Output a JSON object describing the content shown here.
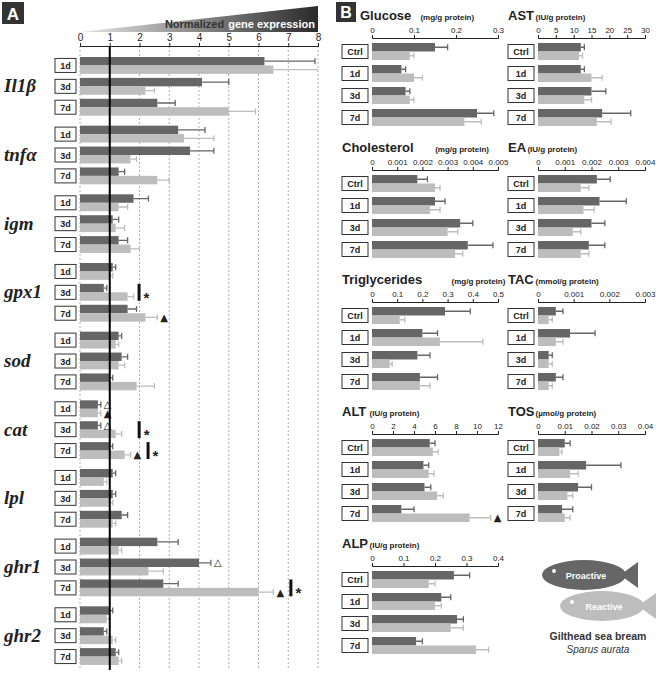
{
  "chart_data": [
    {
      "type": "bar",
      "orientation": "horizontal",
      "panel": "A",
      "title": "Normalized gene expression",
      "xlim": [
        0,
        8
      ],
      "xticks": [
        0,
        1,
        2,
        3,
        4,
        5,
        6,
        7,
        8
      ],
      "reference_line": 1,
      "groups": [
        "Il1β",
        "tnfα",
        "igm",
        "gpx1",
        "sod",
        "cat",
        "lpl",
        "ghr1",
        "ghr2"
      ],
      "categories": [
        "1d",
        "3d",
        "7d",
        "1d",
        "3d",
        "7d",
        "1d",
        "3d",
        "7d",
        "1d",
        "3d",
        "7d",
        "1d",
        "3d",
        "7d",
        "1d",
        "3d",
        "7d",
        "1d",
        "3d",
        "7d",
        "1d",
        "3d",
        "7d",
        "1d",
        "3d",
        "7d"
      ],
      "series": [
        {
          "name": "Proactive",
          "color": "#666666",
          "values": [
            6.2,
            4.1,
            2.6,
            3.3,
            3.7,
            1.3,
            1.8,
            1.1,
            1.3,
            1.1,
            0.8,
            1.6,
            1.3,
            1.4,
            1.0,
            0.6,
            0.6,
            1.0,
            1.1,
            1.1,
            1.4,
            2.6,
            4.0,
            2.8,
            1.0,
            0.8,
            1.2
          ],
          "errors": [
            1.7,
            0.9,
            0.6,
            0.9,
            0.8,
            0.2,
            0.5,
            0.2,
            0.3,
            0.1,
            0.1,
            0.3,
            0.1,
            0.2,
            0.1,
            0.1,
            0.1,
            0.1,
            0.1,
            0.1,
            0.2,
            0.7,
            0.4,
            0.5,
            0.1,
            0.1,
            0.1
          ]
        },
        {
          "name": "Reactive",
          "color": "#bdbdbd",
          "values": [
            6.5,
            2.2,
            5.0,
            3.5,
            1.7,
            2.6,
            1.3,
            1.2,
            1.7,
            1.0,
            1.6,
            2.2,
            1.2,
            1.3,
            1.9,
            0.6,
            1.2,
            1.5,
            0.8,
            1.0,
            1.1,
            1.3,
            2.3,
            6.0,
            0.9,
            1.1,
            1.3
          ],
          "errors": [
            1.9,
            0.3,
            0.9,
            1.0,
            0.2,
            0.4,
            0.3,
            0.3,
            0.3,
            0.1,
            0.2,
            0.4,
            0.1,
            0.2,
            0.6,
            0.1,
            0.2,
            0.2,
            0.1,
            0.1,
            0.1,
            0.1,
            0.5,
            0.5,
            0.1,
            0.1,
            0.1
          ]
        }
      ],
      "annotations": [
        {
          "index": 10,
          "text": "*"
        },
        {
          "index": 11,
          "series": 1,
          "text": "▲"
        },
        {
          "index": 15,
          "series": 0,
          "text": "△"
        },
        {
          "index": 15,
          "series": 1,
          "text": "▲"
        },
        {
          "index": 16,
          "series": 0,
          "text": "△"
        },
        {
          "index": 16,
          "text": "*"
        },
        {
          "index": 17,
          "series": 1,
          "text": "▲"
        },
        {
          "index": 17,
          "text": "*"
        },
        {
          "index": 22,
          "series": 0,
          "text": "△"
        },
        {
          "index": 23,
          "series": 1,
          "text": "▲"
        },
        {
          "index": 23,
          "text": "*"
        }
      ]
    },
    {
      "type": "bar",
      "orientation": "horizontal",
      "panel": "B",
      "title": "Glucose",
      "subtitle": "(mg/g protein)",
      "xlim": [
        0,
        0.3
      ],
      "xticks": [
        0,
        0.1,
        0.2,
        0.3
      ],
      "categories": [
        "Ctrl",
        "1d",
        "3d",
        "7d"
      ],
      "series": [
        {
          "color": "#666666",
          "values": [
            0.15,
            0.07,
            0.08,
            0.25
          ],
          "errors": [
            0.03,
            0.01,
            0.01,
            0.04
          ]
        },
        {
          "color": "#bdbdbd",
          "values": [
            0.09,
            0.1,
            0.09,
            0.22
          ],
          "errors": [
            0.01,
            0.02,
            0.01,
            0.04
          ]
        }
      ]
    },
    {
      "type": "bar",
      "orientation": "horizontal",
      "title": "Cholesterol",
      "subtitle": "(mg/g protein)",
      "xlim": [
        0,
        0.005
      ],
      "xticks": [
        0,
        0.001,
        0.002,
        0.003,
        0.004,
        0.005
      ],
      "categories": [
        "Ctrl",
        "1d",
        "3d",
        "7d"
      ],
      "series": [
        {
          "color": "#666666",
          "values": [
            0.0018,
            0.0025,
            0.0035,
            0.0038
          ],
          "errors": [
            0.0004,
            0.0004,
            0.0005,
            0.001
          ]
        },
        {
          "color": "#bdbdbd",
          "values": [
            0.0025,
            0.0023,
            0.003,
            0.0033
          ],
          "errors": [
            0.0002,
            0.0004,
            0.0004,
            0.0003
          ]
        }
      ]
    },
    {
      "type": "bar",
      "orientation": "horizontal",
      "title": "Triglycerides",
      "subtitle": "(mg/g protein)",
      "xlim": [
        0,
        0.5
      ],
      "xticks": [
        0,
        0.1,
        0.2,
        0.3,
        0.4,
        0.5
      ],
      "categories": [
        "Ctrl",
        "1d",
        "3d",
        "7d"
      ],
      "series": [
        {
          "color": "#666666",
          "values": [
            0.29,
            0.2,
            0.18,
            0.19
          ],
          "errors": [
            0.1,
            0.06,
            0.05,
            0.07
          ]
        },
        {
          "color": "#bdbdbd",
          "values": [
            0.11,
            0.27,
            0.07,
            0.19
          ],
          "errors": [
            0.02,
            0.17,
            0.01,
            0.04
          ]
        }
      ]
    },
    {
      "type": "bar",
      "orientation": "horizontal",
      "title": "ALT",
      "subtitle": "(IU/g protein)",
      "xlim": [
        0,
        12
      ],
      "xticks": [
        0,
        2,
        4,
        6,
        8,
        10,
        12
      ],
      "categories": [
        "Ctrl",
        "1d",
        "3d",
        "7d"
      ],
      "series": [
        {
          "color": "#666666",
          "values": [
            5.5,
            4.9,
            5.0,
            2.8
          ],
          "errors": [
            0.5,
            0.5,
            0.6,
            1.2
          ]
        },
        {
          "color": "#bdbdbd",
          "values": [
            5.8,
            5.4,
            6.2,
            9.3
          ],
          "errors": [
            0.5,
            0.5,
            0.6,
            2.0
          ]
        }
      ],
      "annotations": [
        {
          "index": 3,
          "series": 1,
          "text": "▲"
        }
      ]
    },
    {
      "type": "bar",
      "orientation": "horizontal",
      "title": "ALP",
      "subtitle": "(IU/g protein)",
      "xlim": [
        0,
        0.4
      ],
      "xticks": [
        0,
        0.1,
        0.2,
        0.3,
        0.4
      ],
      "categories": [
        "Ctrl",
        "1d",
        "3d",
        "7d"
      ],
      "series": [
        {
          "color": "#666666",
          "values": [
            0.26,
            0.22,
            0.27,
            0.14
          ],
          "errors": [
            0.05,
            0.03,
            0.02,
            0.02
          ]
        },
        {
          "color": "#bdbdbd",
          "values": [
            0.18,
            0.2,
            0.25,
            0.33
          ],
          "errors": [
            0.02,
            0.02,
            0.04,
            0.04
          ]
        }
      ]
    },
    {
      "type": "bar",
      "orientation": "horizontal",
      "title": "AST",
      "subtitle": "(IU/g protein)",
      "xlim": [
        0,
        30
      ],
      "xticks": [
        0,
        5,
        10,
        15,
        20,
        25,
        30
      ],
      "categories": [
        "Ctrl",
        "1d",
        "3d",
        "7d"
      ],
      "series": [
        {
          "color": "#666666",
          "values": [
            12,
            12,
            15,
            18
          ],
          "errors": [
            1,
            1,
            4,
            8
          ]
        },
        {
          "color": "#bdbdbd",
          "values": [
            11.5,
            15,
            13,
            16.5
          ],
          "errors": [
            1,
            3,
            2,
            4
          ]
        }
      ]
    },
    {
      "type": "bar",
      "orientation": "horizontal",
      "title": "EA",
      "subtitle": "(IU/g protein)",
      "xlim": [
        0,
        0.004
      ],
      "xticks": [
        0,
        0.001,
        0.002,
        0.003,
        0.004
      ],
      "categories": [
        "Ctrl",
        "1d",
        "3d",
        "7d"
      ],
      "series": [
        {
          "color": "#666666",
          "values": [
            0.0022,
            0.0023,
            0.002,
            0.0019
          ],
          "errors": [
            0.0005,
            0.001,
            0.0005,
            0.0006
          ]
        },
        {
          "color": "#bdbdbd",
          "values": [
            0.0016,
            0.0017,
            0.0013,
            0.0016
          ],
          "errors": [
            0.0003,
            0.0004,
            0.0003,
            0.0003
          ]
        }
      ]
    },
    {
      "type": "bar",
      "orientation": "horizontal",
      "title": "TAC",
      "subtitle": "(mmol/g protein)",
      "xlim": [
        0,
        0.003
      ],
      "xticks": [
        0,
        0.001,
        0.002,
        0.003
      ],
      "categories": [
        "Ctrl",
        "1d",
        "3d",
        "7d"
      ],
      "series": [
        {
          "color": "#666666",
          "values": [
            0.0005,
            0.0009,
            0.0003,
            0.0005
          ],
          "errors": [
            0.0002,
            0.0007,
            0.0001,
            0.0002
          ]
        },
        {
          "color": "#bdbdbd",
          "values": [
            0.0003,
            0.0005,
            0.0003,
            0.0003
          ],
          "errors": [
            0.0001,
            0.0002,
            0.0001,
            0.0001
          ]
        }
      ]
    },
    {
      "type": "bar",
      "orientation": "horizontal",
      "title": "TOS",
      "subtitle": "(µmol/g protein)",
      "xlim": [
        0,
        0.04
      ],
      "xticks": [
        0,
        0.01,
        0.02,
        0.03,
        0.04
      ],
      "categories": [
        "Ctrl",
        "1d",
        "3d",
        "7d"
      ],
      "series": [
        {
          "color": "#666666",
          "values": [
            0.01,
            0.018,
            0.015,
            0.009
          ],
          "errors": [
            0.002,
            0.013,
            0.005,
            0.004
          ]
        },
        {
          "color": "#bdbdbd",
          "values": [
            0.008,
            0.012,
            0.011,
            0.01
          ],
          "errors": [
            0.001,
            0.003,
            0.002,
            0.002
          ]
        }
      ]
    }
  ],
  "legend_title": "Gilthead sea bream",
  "legend_subtitle": "Sparus aurata"
}
